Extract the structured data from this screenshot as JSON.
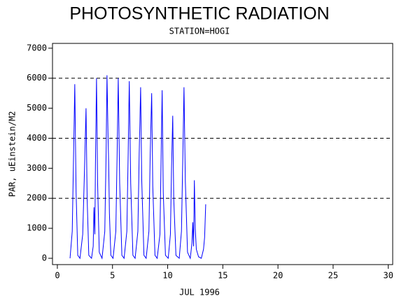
{
  "chart_data": {
    "type": "line",
    "title": "PHOTOSYNTHETIC RADIATION",
    "subtitle": "STATION=HOGI",
    "x_label": "JUL 1996",
    "y_label": "PAR, uEinstein/M2",
    "x": [
      1.15,
      1.35,
      1.45,
      1.58,
      1.7,
      1.85,
      2.05,
      2.3,
      2.45,
      2.6,
      2.7,
      2.85,
      3.1,
      3.25,
      3.32,
      3.4,
      3.45,
      3.55,
      3.65,
      3.8,
      4.05,
      4.3,
      4.42,
      4.5,
      4.6,
      4.65,
      4.72,
      4.85,
      5.05,
      5.3,
      5.42,
      5.52,
      5.65,
      5.85,
      6.05,
      6.3,
      6.42,
      6.52,
      6.65,
      6.85,
      7.05,
      7.3,
      7.42,
      7.55,
      7.65,
      7.85,
      8.05,
      8.3,
      8.42,
      8.55,
      8.65,
      8.85,
      9.05,
      9.3,
      9.4,
      9.5,
      9.6,
      9.8,
      10.05,
      10.25,
      10.35,
      10.46,
      10.55,
      10.75,
      11.05,
      11.25,
      11.38,
      11.48,
      11.6,
      11.8,
      12.05,
      12.2,
      12.28,
      12.35,
      12.42,
      12.5,
      12.6,
      12.8,
      13.05,
      13.25,
      13.35,
      13.45
    ],
    "series": [
      {
        "color": "#0000ff",
        "values": [
          0,
          900,
          3000,
          5800,
          2200,
          100,
          0,
          800,
          2800,
          5000,
          2000,
          100,
          0,
          400,
          1700,
          800,
          3000,
          6000,
          2500,
          200,
          0,
          900,
          3500,
          6100,
          4000,
          3200,
          1500,
          100,
          0,
          900,
          3500,
          6000,
          2500,
          100,
          0,
          900,
          3500,
          5900,
          2500,
          100,
          0,
          900,
          3500,
          5700,
          2600,
          100,
          0,
          900,
          3500,
          5500,
          2400,
          100,
          0,
          800,
          3200,
          5600,
          2200,
          100,
          0,
          800,
          3000,
          4750,
          2000,
          100,
          0,
          900,
          3500,
          5700,
          2600,
          200,
          0,
          500,
          1200,
          400,
          2600,
          1000,
          300,
          50,
          0,
          300,
          700,
          1800
        ]
      }
    ],
    "xlim": [
      -0.44,
      30.4
    ],
    "ylim": [
      -210,
      7160
    ],
    "xticks": [
      0,
      5,
      10,
      15,
      20,
      25,
      30
    ],
    "yticks": [
      0,
      1000,
      2000,
      3000,
      4000,
      5000,
      6000,
      7000
    ],
    "grid_y": [
      2000,
      4000,
      6000
    ]
  }
}
